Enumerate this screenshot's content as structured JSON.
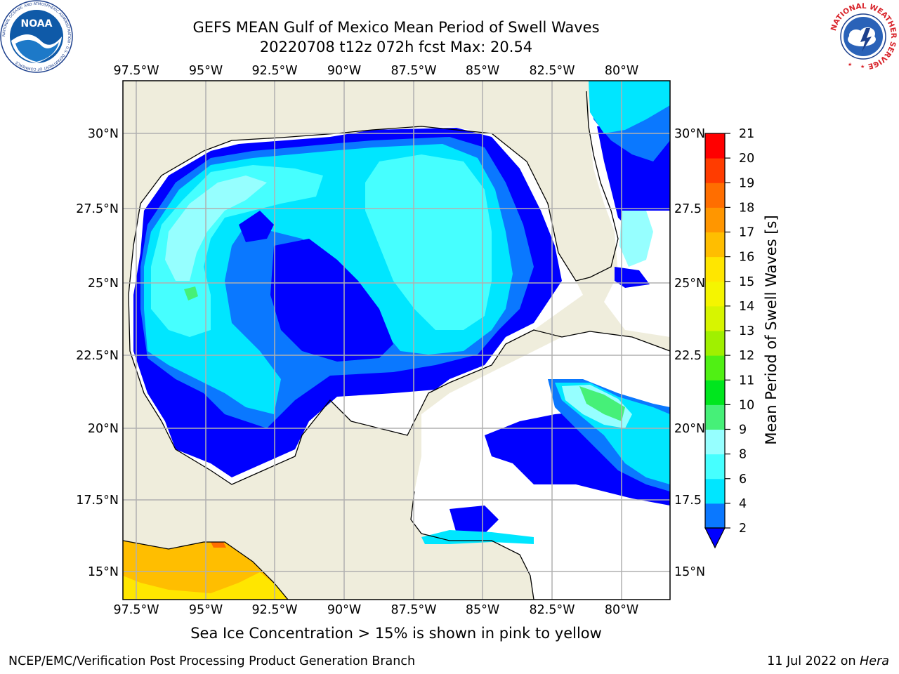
{
  "title": {
    "line1": "GEFS MEAN Gulf of Mexico Mean Period of Swell Waves",
    "line2": "20220708 t12z 072h fcst   Max: 20.54"
  },
  "map": {
    "lon_labels": [
      "97.5°W",
      "95°W",
      "92.5°W",
      "90°W",
      "87.5°W",
      "85°W",
      "82.5°W",
      "80°W"
    ],
    "lat_labels_left": [
      "30°N",
      "27.5°N",
      "25°N",
      "22.5°N",
      "20°N",
      "17.5°N",
      "15°N"
    ],
    "lat_labels_right": [
      "30°N",
      "27.5",
      "25°N",
      "22.5",
      "20°N",
      "17.5",
      "15°N"
    ],
    "colors": {
      "land": "#efeddc",
      "ocean_blank": "#ffffff",
      "grid": "#b0b0b0"
    }
  },
  "colorbar": {
    "label": "Mean Period of Swell Waves [s]",
    "ticks": [
      "2",
      "4",
      "6",
      "8",
      "9",
      "10",
      "11",
      "12",
      "13",
      "14",
      "15",
      "16",
      "17",
      "18",
      "19",
      "20",
      "21"
    ],
    "colors": [
      "#0000ff",
      "#0a78ff",
      "#00e6ff",
      "#46ffff",
      "#96ffff",
      "#46f078",
      "#00e61e",
      "#50f014",
      "#a0f000",
      "#d7f500",
      "#f5f500",
      "#ffe600",
      "#ffbe00",
      "#ff9600",
      "#ff6e00",
      "#ff3c00",
      "#ff0000"
    ]
  },
  "note": "Sea Ice Concentration > 15% is shown in pink to yellow",
  "credits": {
    "left": "NCEP/EMC/Verification Post Processing Product Generation Branch",
    "date": "11 Jul 2022 on",
    "host": "Hera"
  },
  "logos": {
    "left": {
      "name": "NOAA",
      "ring_text": "NATIONAL OCEANIC AND ATMOSPHERIC ADMINISTRATION · U.S. DEPARTMENT OF COMMERCE"
    },
    "right": {
      "ring_text": "NATIONAL WEATHER SERVICE"
    }
  }
}
